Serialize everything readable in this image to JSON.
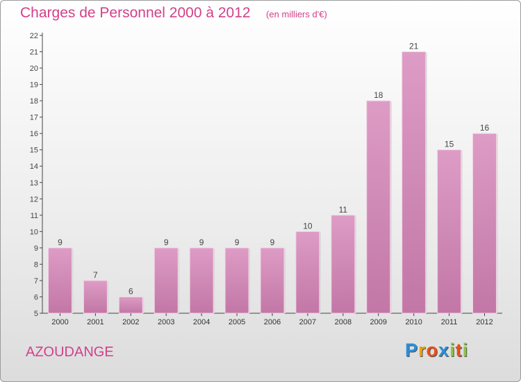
{
  "header": {
    "title": "Charges de Personnel 2000 à 2012",
    "subtitle": "(en milliers d'€)"
  },
  "footer": {
    "commune": "AZOUDANGE",
    "logo": {
      "letters": [
        "P",
        "r",
        "o",
        "x",
        "i",
        "t",
        "i"
      ],
      "colors": [
        "#2a8fd6",
        "#e8a21a",
        "#e8511a",
        "#2a8fd6",
        "#8bc53f",
        "#e8511a",
        "#8bc53f"
      ]
    }
  },
  "chart_data": {
    "type": "bar",
    "categories": [
      "2000",
      "2001",
      "2002",
      "2003",
      "2004",
      "2005",
      "2006",
      "2007",
      "2008",
      "2009",
      "2010",
      "2011",
      "2012"
    ],
    "values": [
      9,
      7,
      6,
      9,
      9,
      9,
      9,
      10,
      11,
      18,
      21,
      15,
      16
    ],
    "data_labels": [
      "9",
      "7",
      "6",
      "9",
      "9",
      "9",
      "9",
      "10",
      "11",
      "18",
      "21",
      "15",
      "16"
    ],
    "title": "Charges de Personnel 2000 à 2012",
    "ylim": [
      5,
      22
    ],
    "yticks": [
      5,
      6,
      7,
      8,
      9,
      10,
      11,
      12,
      13,
      14,
      15,
      16,
      17,
      18,
      19,
      20,
      21,
      22
    ],
    "grid": false,
    "bar_color": "#dd9cc5",
    "bar_color_dark": "#c277a6"
  }
}
